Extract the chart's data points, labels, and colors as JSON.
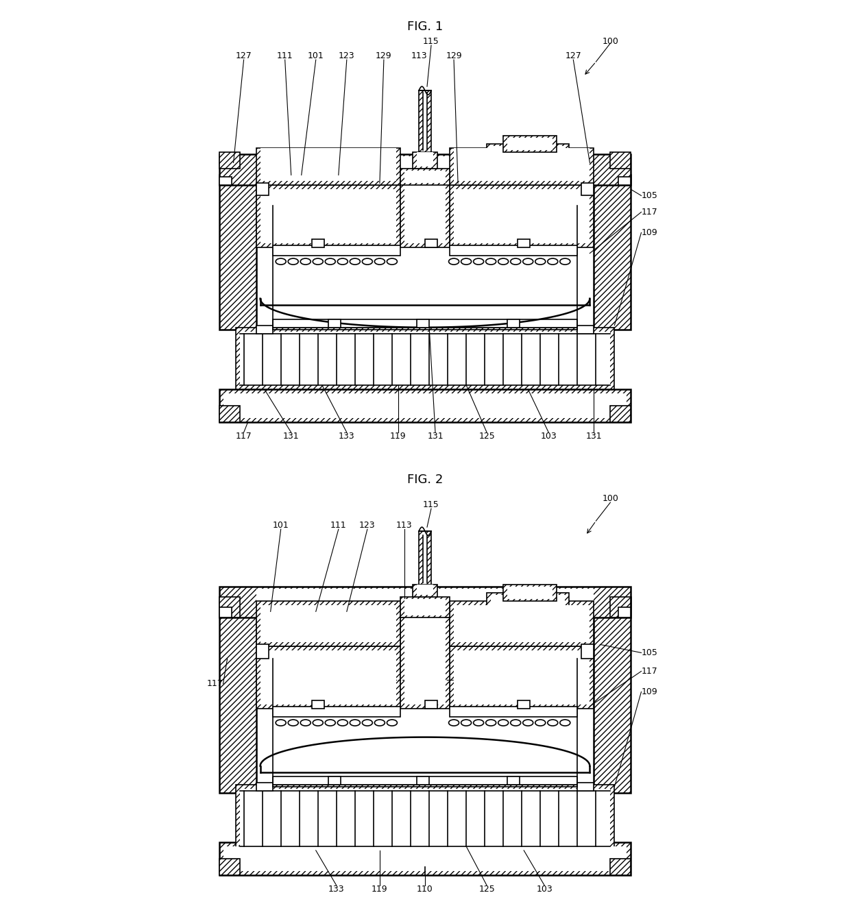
{
  "fig1_title": "FIG. 1",
  "fig2_title": "FIG. 2",
  "bg_color": "#ffffff",
  "hatch": "////",
  "lw_thin": 0.8,
  "lw_med": 1.2,
  "lw_thick": 1.8,
  "fs_label": 9,
  "fs_title": 13
}
